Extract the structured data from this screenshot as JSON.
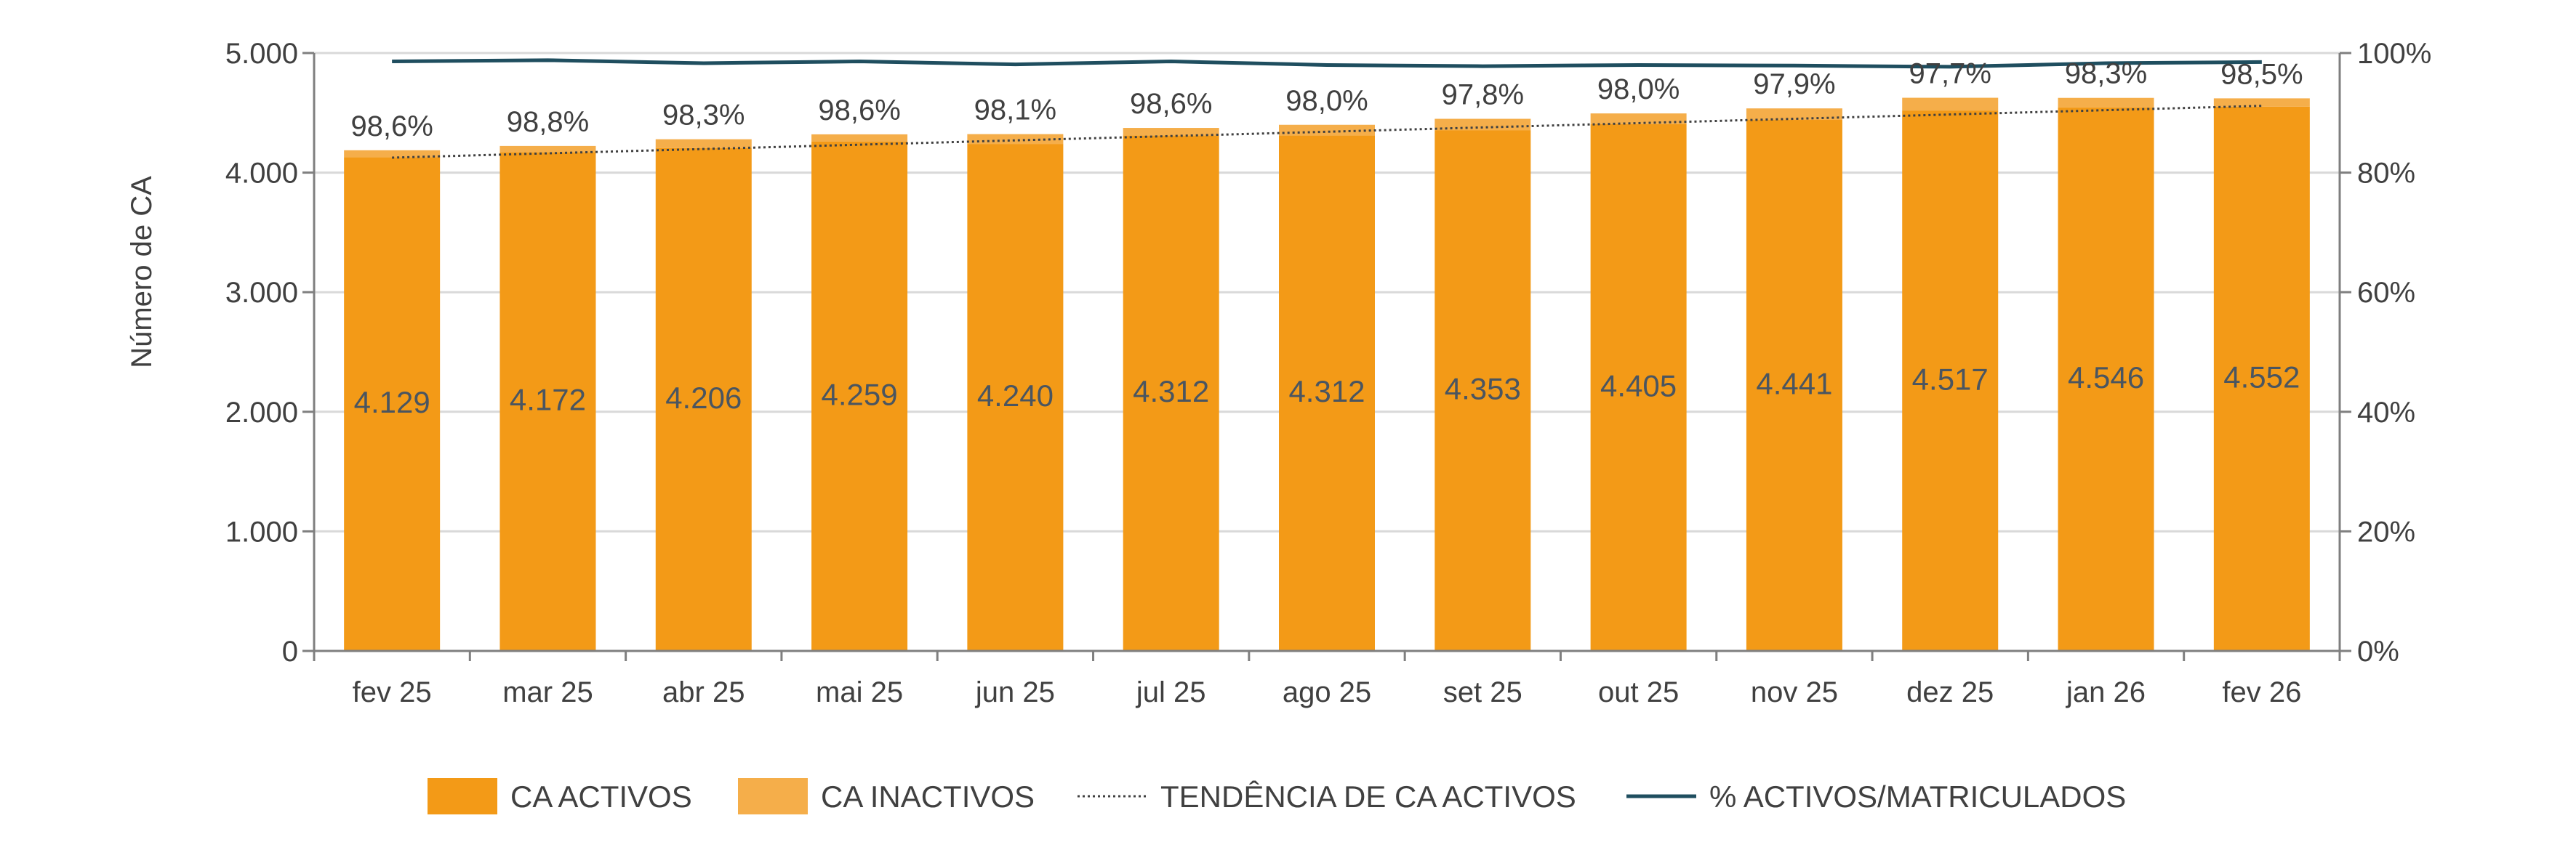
{
  "chart_data": {
    "type": "bar",
    "categories": [
      "fev 25",
      "mar 25",
      "abr 25",
      "mai 25",
      "jun 25",
      "jul 25",
      "ago 25",
      "set 25",
      "out 25",
      "nov 25",
      "dez 25",
      "jan 26",
      "fev 26"
    ],
    "series": [
      {
        "name": "CA ACTIVOS",
        "values": [
          4129,
          4172,
          4206,
          4259,
          4240,
          4312,
          4312,
          4353,
          4405,
          4441,
          4517,
          4546,
          4552
        ],
        "color": "#f39a17"
      },
      {
        "name": "CA INACTIVOS",
        "values": [
          58,
          51,
          73,
          61,
          82,
          62,
          88,
          97,
          90,
          96,
          109,
          79,
          69
        ],
        "color": "#f5ae4a"
      },
      {
        "name": "TENDÊNCIA DE CA ACTIVOS",
        "color": "#404040"
      },
      {
        "name": "% ACTIVOS/MATRICULADOS",
        "values": [
          98.6,
          98.8,
          98.3,
          98.6,
          98.1,
          98.6,
          98.0,
          97.8,
          98.0,
          97.9,
          97.7,
          98.3,
          98.5
        ],
        "color": "#1f4e5f"
      }
    ],
    "value_labels": [
      "4.129",
      "4.172",
      "4.206",
      "4.259",
      "4.240",
      "4.312",
      "4.312",
      "4.353",
      "4.405",
      "4.441",
      "4.517",
      "4.546",
      "4.552"
    ],
    "pct_labels": [
      "98,6%",
      "98,8%",
      "98,3%",
      "98,6%",
      "98,1%",
      "98,6%",
      "98,0%",
      "97,8%",
      "98,0%",
      "97,9%",
      "97,7%",
      "98,3%",
      "98,5%"
    ],
    "ylabel": "Número de CA",
    "ylim": [
      0,
      5000
    ],
    "yticks": [
      "0",
      "1.000",
      "2.000",
      "3.000",
      "4.000",
      "5.000"
    ],
    "y2lim": [
      0,
      100
    ],
    "y2ticks": [
      "0%",
      "20%",
      "40%",
      "60%",
      "80%",
      "100%"
    ],
    "grid": true,
    "legend_position": "bottom"
  }
}
